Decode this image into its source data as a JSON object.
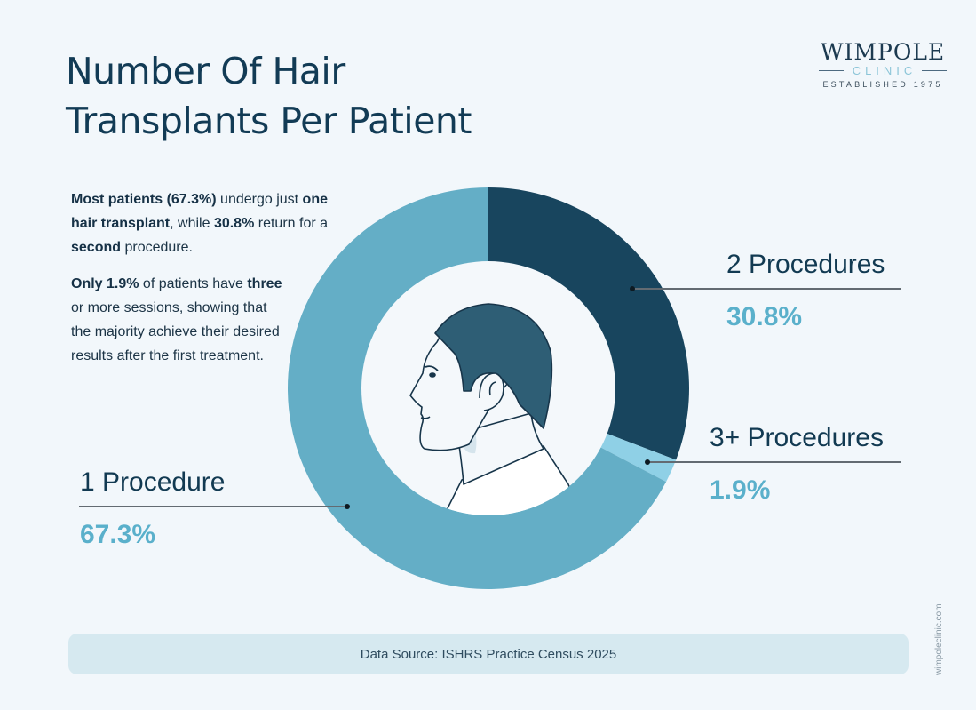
{
  "title": {
    "line1": "Number Of Hair",
    "line2": "Transplants Per Patient"
  },
  "logo": {
    "name": "WIMPOLE",
    "sub": "CLINIC",
    "established": "ESTABLISHED 1975"
  },
  "description": {
    "p1": [
      {
        "text": "Most patients (67.3%)",
        "bold": true
      },
      {
        "text": " undergo just ",
        "bold": false
      },
      {
        "text": "one hair transplant",
        "bold": true
      },
      {
        "text": ", while ",
        "bold": false
      },
      {
        "text": "30.8%",
        "bold": true
      },
      {
        "text": " return for a ",
        "bold": false
      },
      {
        "text": "second",
        "bold": true
      },
      {
        "text": " procedure.",
        "bold": false
      }
    ],
    "p2": [
      {
        "text": "Only 1.9%",
        "bold": true
      },
      {
        "text": " of patients have ",
        "bold": false
      },
      {
        "text": "three",
        "bold": true
      },
      {
        "text": " or more sessions, showing that the majority achieve their desired results after the first treatment.",
        "bold": false
      }
    ]
  },
  "labels": {
    "one": {
      "name": "1 Procedure",
      "value": "67.3%"
    },
    "two": {
      "name": "2 Procedures",
      "value": "30.8%"
    },
    "three": {
      "name": "3+ Procedures",
      "value": "1.9%"
    }
  },
  "colors": {
    "one": "#64aec6",
    "two": "#18455e",
    "three": "#8fd0e6",
    "hair": "#2e5e75",
    "center": "#f4f8fb"
  },
  "source": "Data Source: ISHRS Practice Census 2025",
  "site": "wimpoleclinic.com",
  "chart_data": {
    "type": "pie",
    "subtype": "donut",
    "title": "Number Of Hair Transplants Per Patient",
    "categories": [
      "1 Procedure",
      "2 Procedures",
      "3+ Procedures"
    ],
    "values": [
      67.3,
      30.8,
      1.9
    ],
    "unit": "%",
    "colors": [
      "#64aec6",
      "#18455e",
      "#8fd0e6"
    ],
    "start_angle_deg": 0,
    "direction": "clockwise from top",
    "center_image": "side-profile head illustration",
    "source": "ISHRS Practice Census 2025"
  }
}
